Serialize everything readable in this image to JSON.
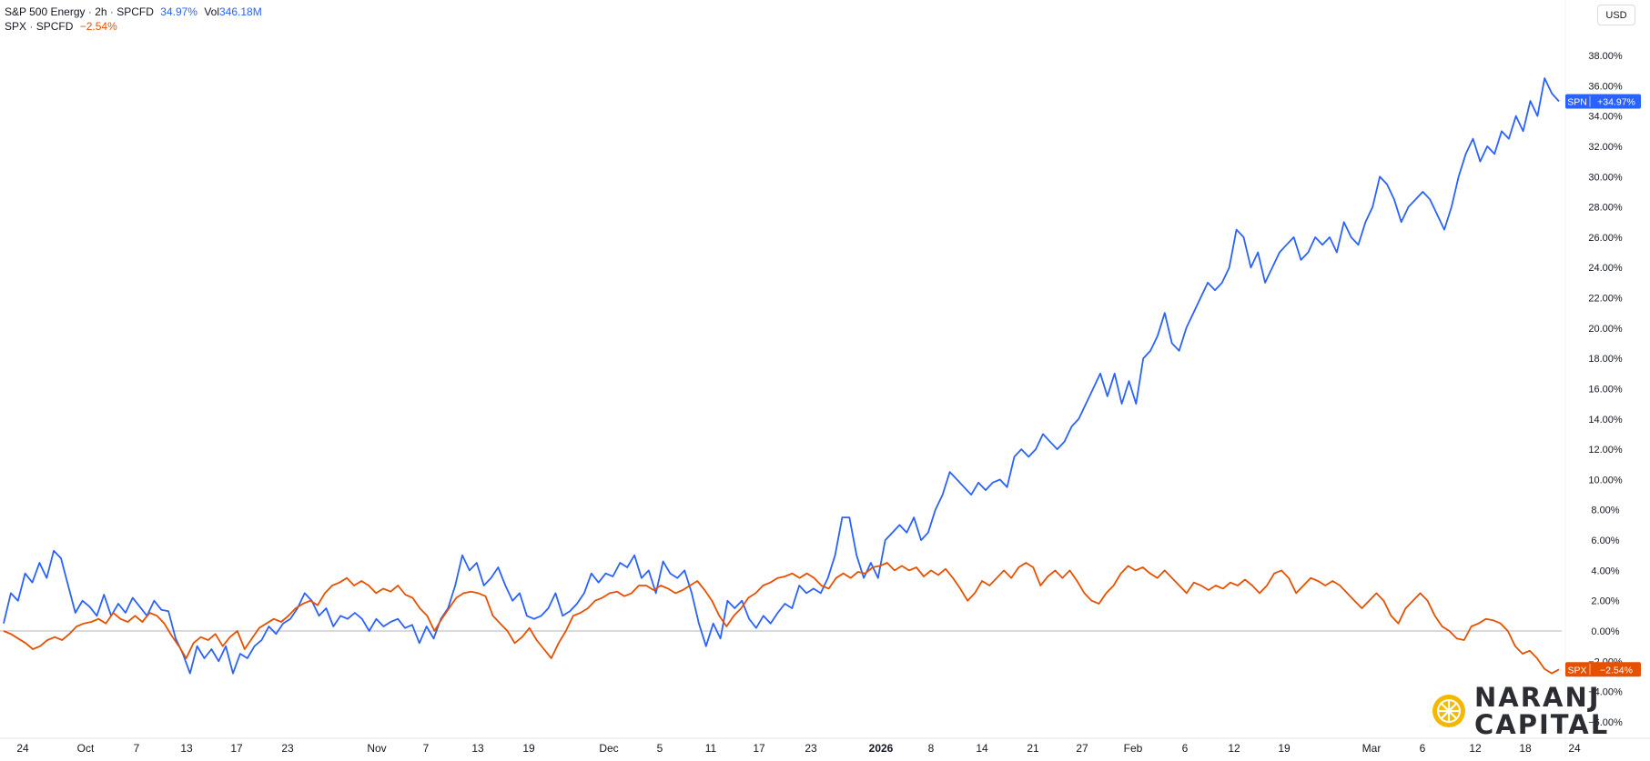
{
  "legend": {
    "series1": {
      "name": "S&P 500 Energy",
      "interval": "2h",
      "source": "SPCFD",
      "change": "34.97%",
      "vol_label": "Vol",
      "vol_value": "346.18M"
    },
    "series2": {
      "name": "SPX",
      "source": "SPCFD",
      "change": "−2.54%"
    }
  },
  "currency": "USD",
  "logo": {
    "line1": "NARANJ",
    "line2": "CAPITAL"
  },
  "colors": {
    "spn": "#2962ff",
    "spx": "#e65100",
    "zero_line": "#b2b5be",
    "axis_text": "#131722"
  },
  "chart_data": {
    "type": "line",
    "y_unit": "%",
    "ylim": [
      -6.8,
      39.5
    ],
    "grid": false,
    "y_ticks": [
      {
        "v": 38,
        "label": "38.00%"
      },
      {
        "v": 36,
        "label": "36.00%"
      },
      {
        "v": 34,
        "label": "34.00%"
      },
      {
        "v": 32,
        "label": "32.00%"
      },
      {
        "v": 30,
        "label": "30.00%"
      },
      {
        "v": 28,
        "label": "28.00%"
      },
      {
        "v": 26,
        "label": "26.00%"
      },
      {
        "v": 24,
        "label": "24.00%"
      },
      {
        "v": 22,
        "label": "22.00%"
      },
      {
        "v": 20,
        "label": "20.00%"
      },
      {
        "v": 18,
        "label": "18.00%"
      },
      {
        "v": 16,
        "label": "16.00%"
      },
      {
        "v": 14,
        "label": "14.00%"
      },
      {
        "v": 12,
        "label": "12.00%"
      },
      {
        "v": 10,
        "label": "10.00%"
      },
      {
        "v": 8,
        "label": "8.00%"
      },
      {
        "v": 6,
        "label": "6.00%"
      },
      {
        "v": 4,
        "label": "4.00%"
      },
      {
        "v": 2,
        "label": "2.00%"
      },
      {
        "v": 0,
        "label": "0.00%"
      },
      {
        "v": -2,
        "label": "−2.00%"
      },
      {
        "v": -4,
        "label": "−4.00%"
      },
      {
        "v": -6,
        "label": "−6.00%"
      }
    ],
    "x_ticks": [
      {
        "label": "24",
        "bold": false
      },
      {
        "label": "Oct",
        "bold": false
      },
      {
        "label": "7",
        "bold": false
      },
      {
        "label": "13",
        "bold": false
      },
      {
        "label": "17",
        "bold": false
      },
      {
        "label": "23",
        "bold": false
      },
      {
        "label": "Nov",
        "bold": false
      },
      {
        "label": "7",
        "bold": false
      },
      {
        "label": "13",
        "bold": false
      },
      {
        "label": "19",
        "bold": false
      },
      {
        "label": "Dec",
        "bold": false
      },
      {
        "label": "5",
        "bold": false
      },
      {
        "label": "11",
        "bold": false
      },
      {
        "label": "17",
        "bold": false
      },
      {
        "label": "23",
        "bold": false
      },
      {
        "label": "2026",
        "bold": true
      },
      {
        "label": "8",
        "bold": false
      },
      {
        "label": "14",
        "bold": false
      },
      {
        "label": "21",
        "bold": false
      },
      {
        "label": "27",
        "bold": false
      },
      {
        "label": "Feb",
        "bold": false
      },
      {
        "label": "6",
        "bold": false
      },
      {
        "label": "12",
        "bold": false
      },
      {
        "label": "19",
        "bold": false
      },
      {
        "label": "Mar",
        "bold": false
      },
      {
        "label": "6",
        "bold": false
      },
      {
        "label": "12",
        "bold": false
      },
      {
        "label": "18",
        "bold": false
      },
      {
        "label": "24",
        "bold": false
      }
    ],
    "series": [
      {
        "name": "SPN",
        "last_label": "+34.97%",
        "last_value": 34.97,
        "values": [
          0.5,
          2.5,
          2.0,
          3.8,
          3.2,
          4.5,
          3.5,
          5.3,
          4.8,
          3.0,
          1.2,
          2.0,
          1.6,
          1.0,
          2.4,
          1.0,
          1.8,
          1.2,
          2.2,
          1.6,
          1.0,
          2.0,
          1.4,
          1.3,
          -0.5,
          -1.5,
          -2.8,
          -1.0,
          -1.8,
          -1.2,
          -2.0,
          -1.0,
          -2.8,
          -1.5,
          -1.8,
          -1.0,
          -0.6,
          0.3,
          -0.2,
          0.5,
          0.8,
          1.5,
          2.5,
          2.0,
          1.0,
          1.5,
          0.3,
          1.0,
          0.8,
          1.2,
          0.8,
          0.0,
          0.8,
          0.3,
          0.6,
          0.8,
          0.2,
          0.4,
          -0.8,
          0.3,
          -0.5,
          0.8,
          1.5,
          3.0,
          5.0,
          4.0,
          4.5,
          3.0,
          3.5,
          4.2,
          3.0,
          2.0,
          2.5,
          1.0,
          0.8,
          1.0,
          1.5,
          2.5,
          1.0,
          1.3,
          1.8,
          2.5,
          3.8,
          3.2,
          3.8,
          3.6,
          4.5,
          4.2,
          5.0,
          3.5,
          4.0,
          2.5,
          4.6,
          3.8,
          3.5,
          4.0,
          2.5,
          0.5,
          -1.0,
          0.5,
          -0.5,
          2.0,
          1.5,
          2.0,
          0.8,
          0.2,
          1.0,
          0.5,
          1.2,
          1.8,
          1.5,
          3.0,
          2.5,
          2.8,
          2.5,
          3.5,
          5.0,
          7.5,
          7.5,
          5.0,
          3.5,
          4.5,
          3.5,
          6.0,
          6.5,
          7.0,
          6.5,
          7.5,
          6.0,
          6.5,
          8.0,
          9.0,
          10.5,
          10.0,
          9.5,
          9.0,
          9.8,
          9.3,
          9.8,
          10.0,
          9.5,
          11.5,
          12.0,
          11.5,
          12.0,
          13.0,
          12.5,
          12.0,
          12.5,
          13.5,
          14.0,
          15.0,
          16.0,
          17.0,
          15.5,
          17.0,
          15.0,
          16.5,
          15.0,
          18.0,
          18.5,
          19.5,
          21.0,
          19.0,
          18.5,
          20.0,
          21.0,
          22.0,
          23.0,
          22.5,
          23.0,
          24.0,
          26.5,
          26.0,
          24.0,
          25.0,
          23.0,
          24.0,
          25.0,
          25.5,
          26.0,
          24.5,
          25.0,
          26.0,
          25.5,
          26.0,
          25.0,
          27.0,
          26.0,
          25.5,
          27.0,
          28.0,
          30.0,
          29.5,
          28.5,
          27.0,
          28.0,
          28.5,
          29.0,
          28.5,
          27.5,
          26.5,
          28.0,
          30.0,
          31.5,
          32.5,
          31.0,
          32.0,
          31.5,
          33.0,
          32.5,
          34.0,
          33.0,
          35.0,
          34.0,
          36.5,
          35.5,
          34.97
        ]
      },
      {
        "name": "SPX",
        "last_label": "−2.54%",
        "last_value": -2.54,
        "values": [
          0.0,
          -0.2,
          -0.5,
          -0.8,
          -1.2,
          -1.0,
          -0.6,
          -0.4,
          -0.6,
          -0.2,
          0.3,
          0.5,
          0.6,
          0.8,
          0.5,
          1.2,
          0.8,
          0.6,
          1.0,
          0.6,
          1.2,
          1.0,
          0.5,
          -0.3,
          -1.0,
          -1.8,
          -0.8,
          -0.4,
          -0.6,
          -0.2,
          -1.0,
          -0.4,
          0.0,
          -1.2,
          -0.5,
          0.2,
          0.5,
          0.8,
          0.6,
          1.0,
          1.5,
          1.8,
          2.0,
          1.7,
          2.5,
          3.0,
          3.2,
          3.5,
          3.0,
          3.3,
          3.0,
          2.5,
          2.8,
          2.6,
          3.0,
          2.4,
          2.2,
          1.5,
          1.0,
          0.0,
          0.8,
          1.5,
          2.2,
          2.5,
          2.6,
          2.5,
          2.3,
          1.0,
          0.5,
          0.0,
          -0.8,
          -0.4,
          0.2,
          -0.6,
          -1.2,
          -1.8,
          -0.8,
          0.0,
          1.0,
          1.2,
          1.5,
          2.0,
          2.2,
          2.5,
          2.6,
          2.3,
          2.5,
          3.0,
          3.0,
          2.7,
          3.0,
          2.8,
          2.5,
          2.7,
          3.0,
          3.3,
          2.7,
          2.0,
          1.0,
          0.3,
          1.0,
          1.5,
          2.2,
          2.5,
          3.0,
          3.2,
          3.5,
          3.6,
          3.8,
          3.5,
          3.8,
          3.5,
          3.0,
          2.8,
          3.5,
          3.8,
          3.5,
          3.9,
          3.8,
          4.2,
          4.3,
          4.5,
          4.0,
          4.3,
          4.0,
          4.2,
          3.6,
          4.0,
          3.7,
          4.1,
          3.5,
          2.8,
          2.0,
          2.5,
          3.3,
          3.0,
          3.5,
          4.0,
          3.5,
          4.2,
          4.5,
          4.2,
          3.0,
          3.6,
          4.0,
          3.5,
          4.0,
          3.3,
          2.5,
          2.0,
          1.8,
          2.5,
          3.0,
          3.8,
          4.3,
          4.0,
          4.2,
          3.8,
          3.5,
          4.0,
          3.5,
          3.0,
          2.5,
          3.2,
          3.0,
          2.7,
          3.0,
          2.8,
          3.2,
          3.0,
          3.4,
          3.0,
          2.5,
          3.0,
          3.8,
          4.0,
          3.5,
          2.5,
          3.0,
          3.5,
          3.3,
          3.0,
          3.3,
          3.0,
          2.5,
          2.0,
          1.5,
          2.0,
          2.5,
          2.0,
          1.0,
          0.5,
          1.5,
          2.0,
          2.5,
          2.0,
          1.0,
          0.3,
          0.0,
          -0.5,
          -0.6,
          0.3,
          0.5,
          0.8,
          0.7,
          0.5,
          0.0,
          -1.0,
          -1.5,
          -1.3,
          -1.8,
          -2.5,
          -2.8,
          -2.54
        ]
      }
    ]
  }
}
